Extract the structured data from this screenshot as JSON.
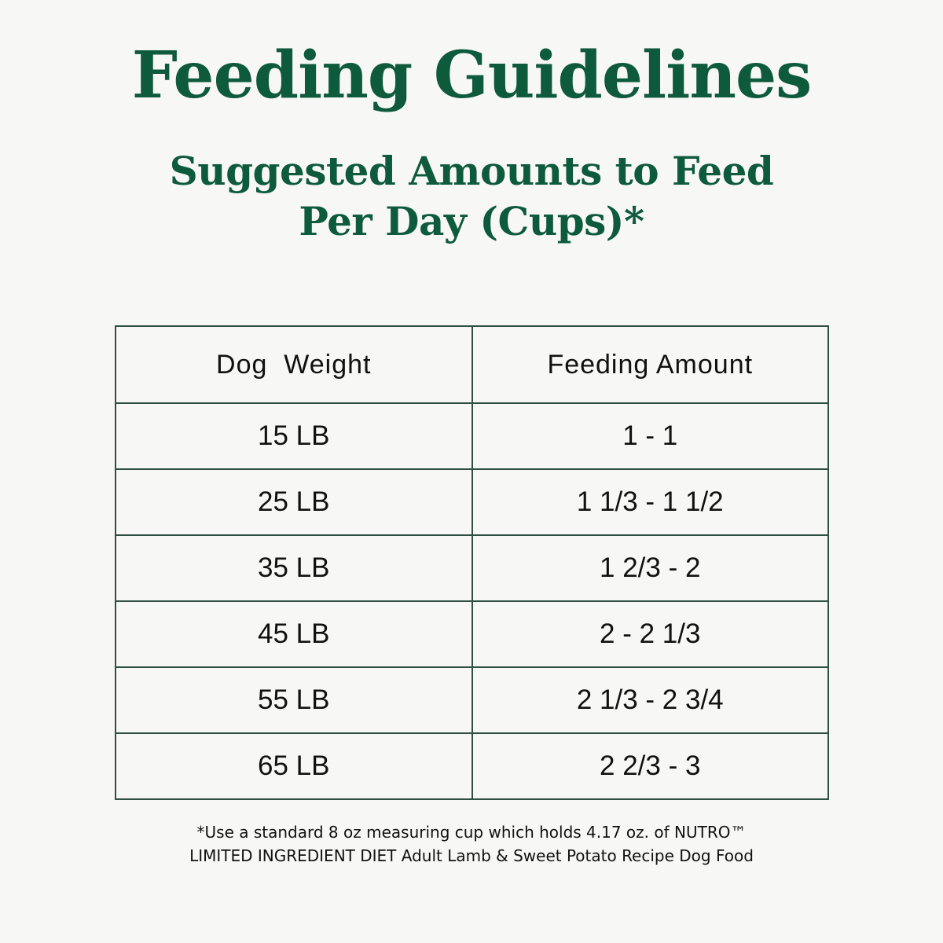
{
  "header": {
    "title": "Feeding Guidelines",
    "subtitle_line1": "Suggested Amounts to Feed",
    "subtitle_line2": "Per Day (Cups)*"
  },
  "table": {
    "columns": [
      "Dog  Weight",
      "Feeding Amount"
    ],
    "rows": [
      {
        "weight": "15 LB",
        "amount": "1 - 1"
      },
      {
        "weight": "25 LB",
        "amount": "1 1/3 - 1 1/2"
      },
      {
        "weight": "35 LB",
        "amount": "1 2/3 - 2"
      },
      {
        "weight": "45 LB",
        "amount": "2 - 2 1/3"
      },
      {
        "weight": "55 LB",
        "amount": "2 1/3 - 2 3/4"
      },
      {
        "weight": "65 LB",
        "amount": "2 2/3 - 3"
      }
    ]
  },
  "footnote": {
    "line1": "*Use a standard 8 oz measuring cup which holds 4.17 oz. of NUTRO™",
    "line2": "LIMITED INGREDIENT DIET Adult Lamb & Sweet Potato Recipe Dog Food"
  },
  "colors": {
    "heading_green": "#0e5a3c",
    "border": "#2f4f44",
    "background": "#f7f7f5"
  }
}
